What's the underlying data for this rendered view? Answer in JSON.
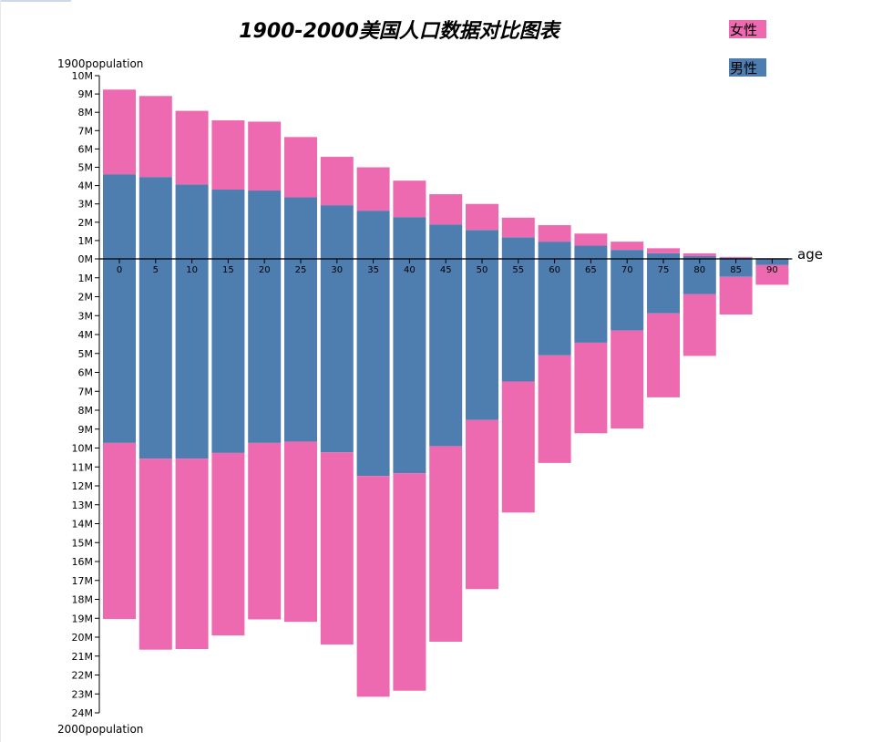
{
  "chart_data": {
    "type": "bar",
    "title": "1900-2000美国人口数据对比图表",
    "upper_axis_label": "1900population",
    "lower_axis_label": "2000population",
    "xlabel": "age",
    "categories": [
      "0",
      "5",
      "10",
      "15",
      "20",
      "25",
      "30",
      "35",
      "40",
      "45",
      "50",
      "55",
      "60",
      "65",
      "70",
      "75",
      "80",
      "85",
      "90"
    ],
    "upper_ticks": [
      "0M",
      "1M",
      "2M",
      "3M",
      "4M",
      "5M",
      "6M",
      "7M",
      "8M",
      "9M",
      "10M"
    ],
    "lower_ticks": [
      "1M",
      "2M",
      "3M",
      "4M",
      "5M",
      "6M",
      "7M",
      "8M",
      "9M",
      "10M",
      "11M",
      "12M",
      "13M",
      "14M",
      "15M",
      "16M",
      "17M",
      "18M",
      "19M",
      "20M",
      "21M",
      "22M",
      "23M",
      "24M"
    ],
    "upper_ylim": [
      0,
      10000000
    ],
    "lower_ylim": [
      0,
      24000000
    ],
    "legend": [
      {
        "name": "女性",
        "color": "#ee6ab0"
      },
      {
        "name": "男性",
        "color": "#4e7db0"
      }
    ],
    "legend_position": "top-right",
    "stacking": "male on axis side, female stacked outward",
    "series_1900": [
      {
        "name": "男性",
        "values": [
          4620000,
          4470000,
          4060000,
          3780000,
          3730000,
          3360000,
          2930000,
          2630000,
          2280000,
          1880000,
          1580000,
          1180000,
          940000,
          720000,
          490000,
          310000,
          150000,
          60000,
          20000
        ]
      },
      {
        "name": "女性",
        "values": [
          4620000,
          4420000,
          4020000,
          3780000,
          3760000,
          3290000,
          2640000,
          2370000,
          1990000,
          1650000,
          1420000,
          1070000,
          900000,
          660000,
          450000,
          270000,
          150000,
          50000,
          20000
        ]
      }
    ],
    "series_2000": [
      {
        "name": "男性",
        "values": [
          9730000,
          10560000,
          10560000,
          10260000,
          9730000,
          9660000,
          10230000,
          11480000,
          11330000,
          9900000,
          8520000,
          6480000,
          5100000,
          4430000,
          3790000,
          2880000,
          1870000,
          950000,
          330000
        ]
      },
      {
        "name": "女性",
        "values": [
          9310000,
          10100000,
          10070000,
          9650000,
          9330000,
          9530000,
          10160000,
          11670000,
          11500000,
          10340000,
          8940000,
          6930000,
          5690000,
          4790000,
          5180000,
          4440000,
          3260000,
          1990000,
          1040000
        ]
      }
    ],
    "colors": {
      "female": "#ee6ab0",
      "male": "#4e7db0",
      "axis": "#000000"
    }
  }
}
